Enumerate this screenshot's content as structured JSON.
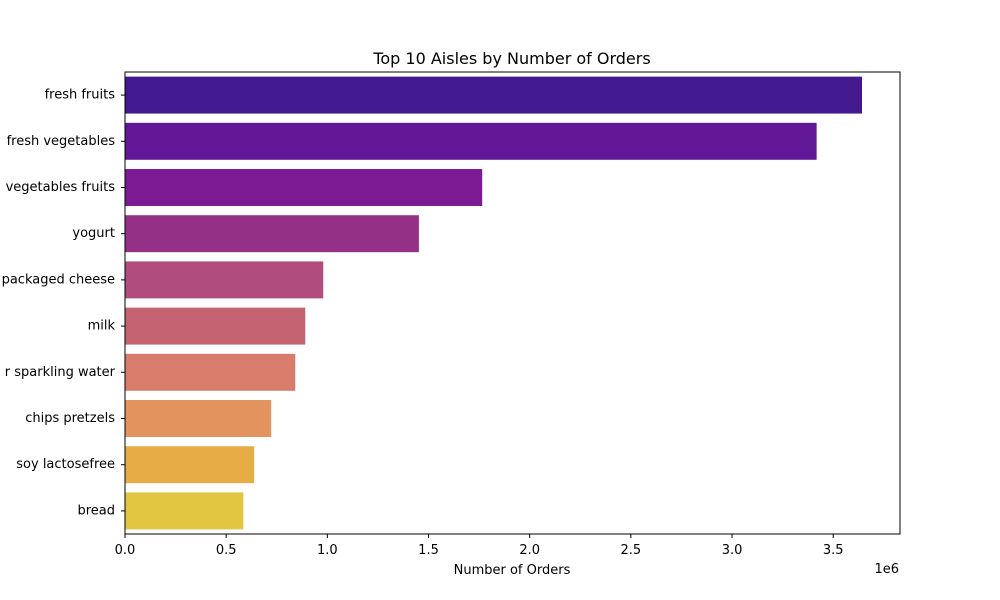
{
  "chart_data": {
    "type": "bar",
    "orientation": "horizontal",
    "title": "Top 10 Aisles by Number of Orders",
    "xlabel": "Number of Orders",
    "ylabel": "",
    "x_offset_label": "1e6",
    "xlim": [
      0,
      3830000
    ],
    "xticks": [
      0,
      500000,
      1000000,
      1500000,
      2000000,
      2500000,
      3000000,
      3500000
    ],
    "xtick_labels": [
      "0.0",
      "0.5",
      "1.0",
      "1.5",
      "2.0",
      "2.5",
      "3.0",
      "3.5"
    ],
    "categories": [
      "fresh fruits",
      "fresh vegetables",
      "packaged vegetables fruits",
      "yogurt",
      "packaged cheese",
      "milk",
      "water seltzer sparkling water",
      "chips pretzels",
      "soy lactosefree",
      "bread"
    ],
    "category_labels_visible": [
      "fresh fruits",
      "fresh vegetables",
      "vegetables fruits",
      "yogurt",
      "packaged cheese",
      "milk",
      "r sparkling water",
      "chips pretzels",
      "soy lactosefree",
      "bread"
    ],
    "values": [
      3642188,
      3418021,
      1765313,
      1452343,
      979763,
      891015,
      841533,
      722470,
      638253,
      584834
    ],
    "colors": [
      "#43198f",
      "#611796",
      "#7b1a93",
      "#953087",
      "#b04d7c",
      "#c46472",
      "#d87c6b",
      "#e2935e",
      "#e6ad46",
      "#e2c540"
    ],
    "grid": false,
    "legend": "none"
  }
}
